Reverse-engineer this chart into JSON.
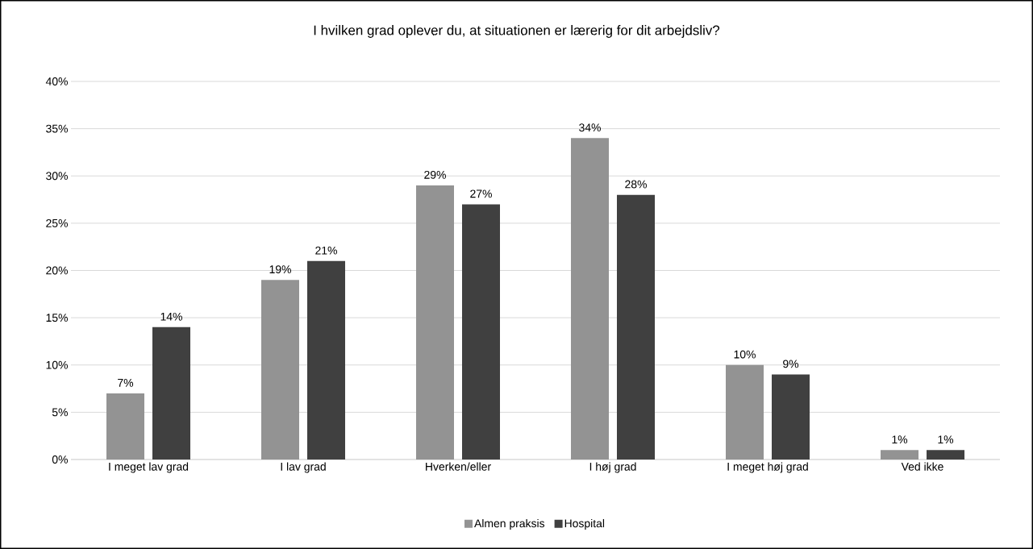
{
  "chart_data": {
    "type": "bar",
    "title": "I hvilken grad oplever du, at situationen er lærerig for dit arbejdsliv?",
    "categories": [
      "I meget lav grad",
      "I lav grad",
      "Hverken/eller",
      "I høj grad",
      "I meget høj grad",
      "Ved ikke"
    ],
    "series": [
      {
        "name": "Almen praksis",
        "color": "#939393",
        "values": [
          7,
          19,
          29,
          34,
          10,
          1
        ],
        "value_labels": [
          "7%",
          "19%",
          "29%",
          "34%",
          "10%",
          "1%"
        ]
      },
      {
        "name": "Hospital",
        "color": "#404040",
        "values": [
          14,
          21,
          27,
          28,
          9,
          1
        ],
        "value_labels": [
          "14%",
          "21%",
          "27%",
          "28%",
          "9%",
          "1%"
        ]
      }
    ],
    "ylim": [
      0,
      40
    ],
    "yticks": [
      {
        "value": 0,
        "label": "0%"
      },
      {
        "value": 5,
        "label": "5%"
      },
      {
        "value": 10,
        "label": "10%"
      },
      {
        "value": 15,
        "label": "15%"
      },
      {
        "value": 20,
        "label": "20%"
      },
      {
        "value": 25,
        "label": "25%"
      },
      {
        "value": 30,
        "label": "30%"
      },
      {
        "value": 35,
        "label": "35%"
      },
      {
        "value": 40,
        "label": "40%"
      }
    ],
    "grid": "y",
    "legend": "bottom"
  }
}
